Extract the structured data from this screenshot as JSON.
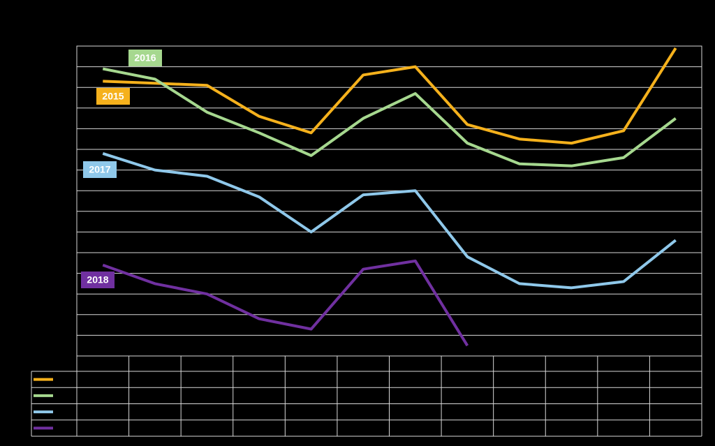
{
  "chart_data": {
    "type": "line",
    "categories": [
      null,
      null,
      null,
      null,
      null,
      null,
      null,
      null,
      null,
      null,
      null,
      null
    ],
    "series": [
      {
        "name": "2015",
        "color": "#f5b11c",
        "values": [
          13.3,
          13.2,
          13.1,
          11.6,
          10.8,
          13.6,
          14.0,
          11.2,
          10.5,
          10.3,
          10.9,
          14.9
        ]
      },
      {
        "name": "2016",
        "color": "#a6d88f",
        "values": [
          13.9,
          13.4,
          11.8,
          10.8,
          9.7,
          11.5,
          12.7,
          10.3,
          9.3,
          9.2,
          9.6,
          11.5
        ]
      },
      {
        "name": "2017",
        "color": "#8fc8ea",
        "values": [
          9.8,
          9.0,
          8.7,
          7.7,
          6.0,
          7.8,
          8.0,
          4.8,
          3.5,
          3.3,
          3.6,
          5.6
        ]
      },
      {
        "name": "2018",
        "color": "#7030a0",
        "values": [
          4.4,
          3.5,
          3.0,
          1.8,
          1.3,
          4.2,
          4.6,
          0.5,
          null,
          null,
          null,
          null
        ]
      }
    ],
    "ylim": [
      0,
      15
    ],
    "yticks": [
      0,
      1,
      2,
      3,
      4,
      5,
      6,
      7,
      8,
      9,
      10,
      11,
      12,
      13,
      14,
      15
    ],
    "grid": true
  }
}
